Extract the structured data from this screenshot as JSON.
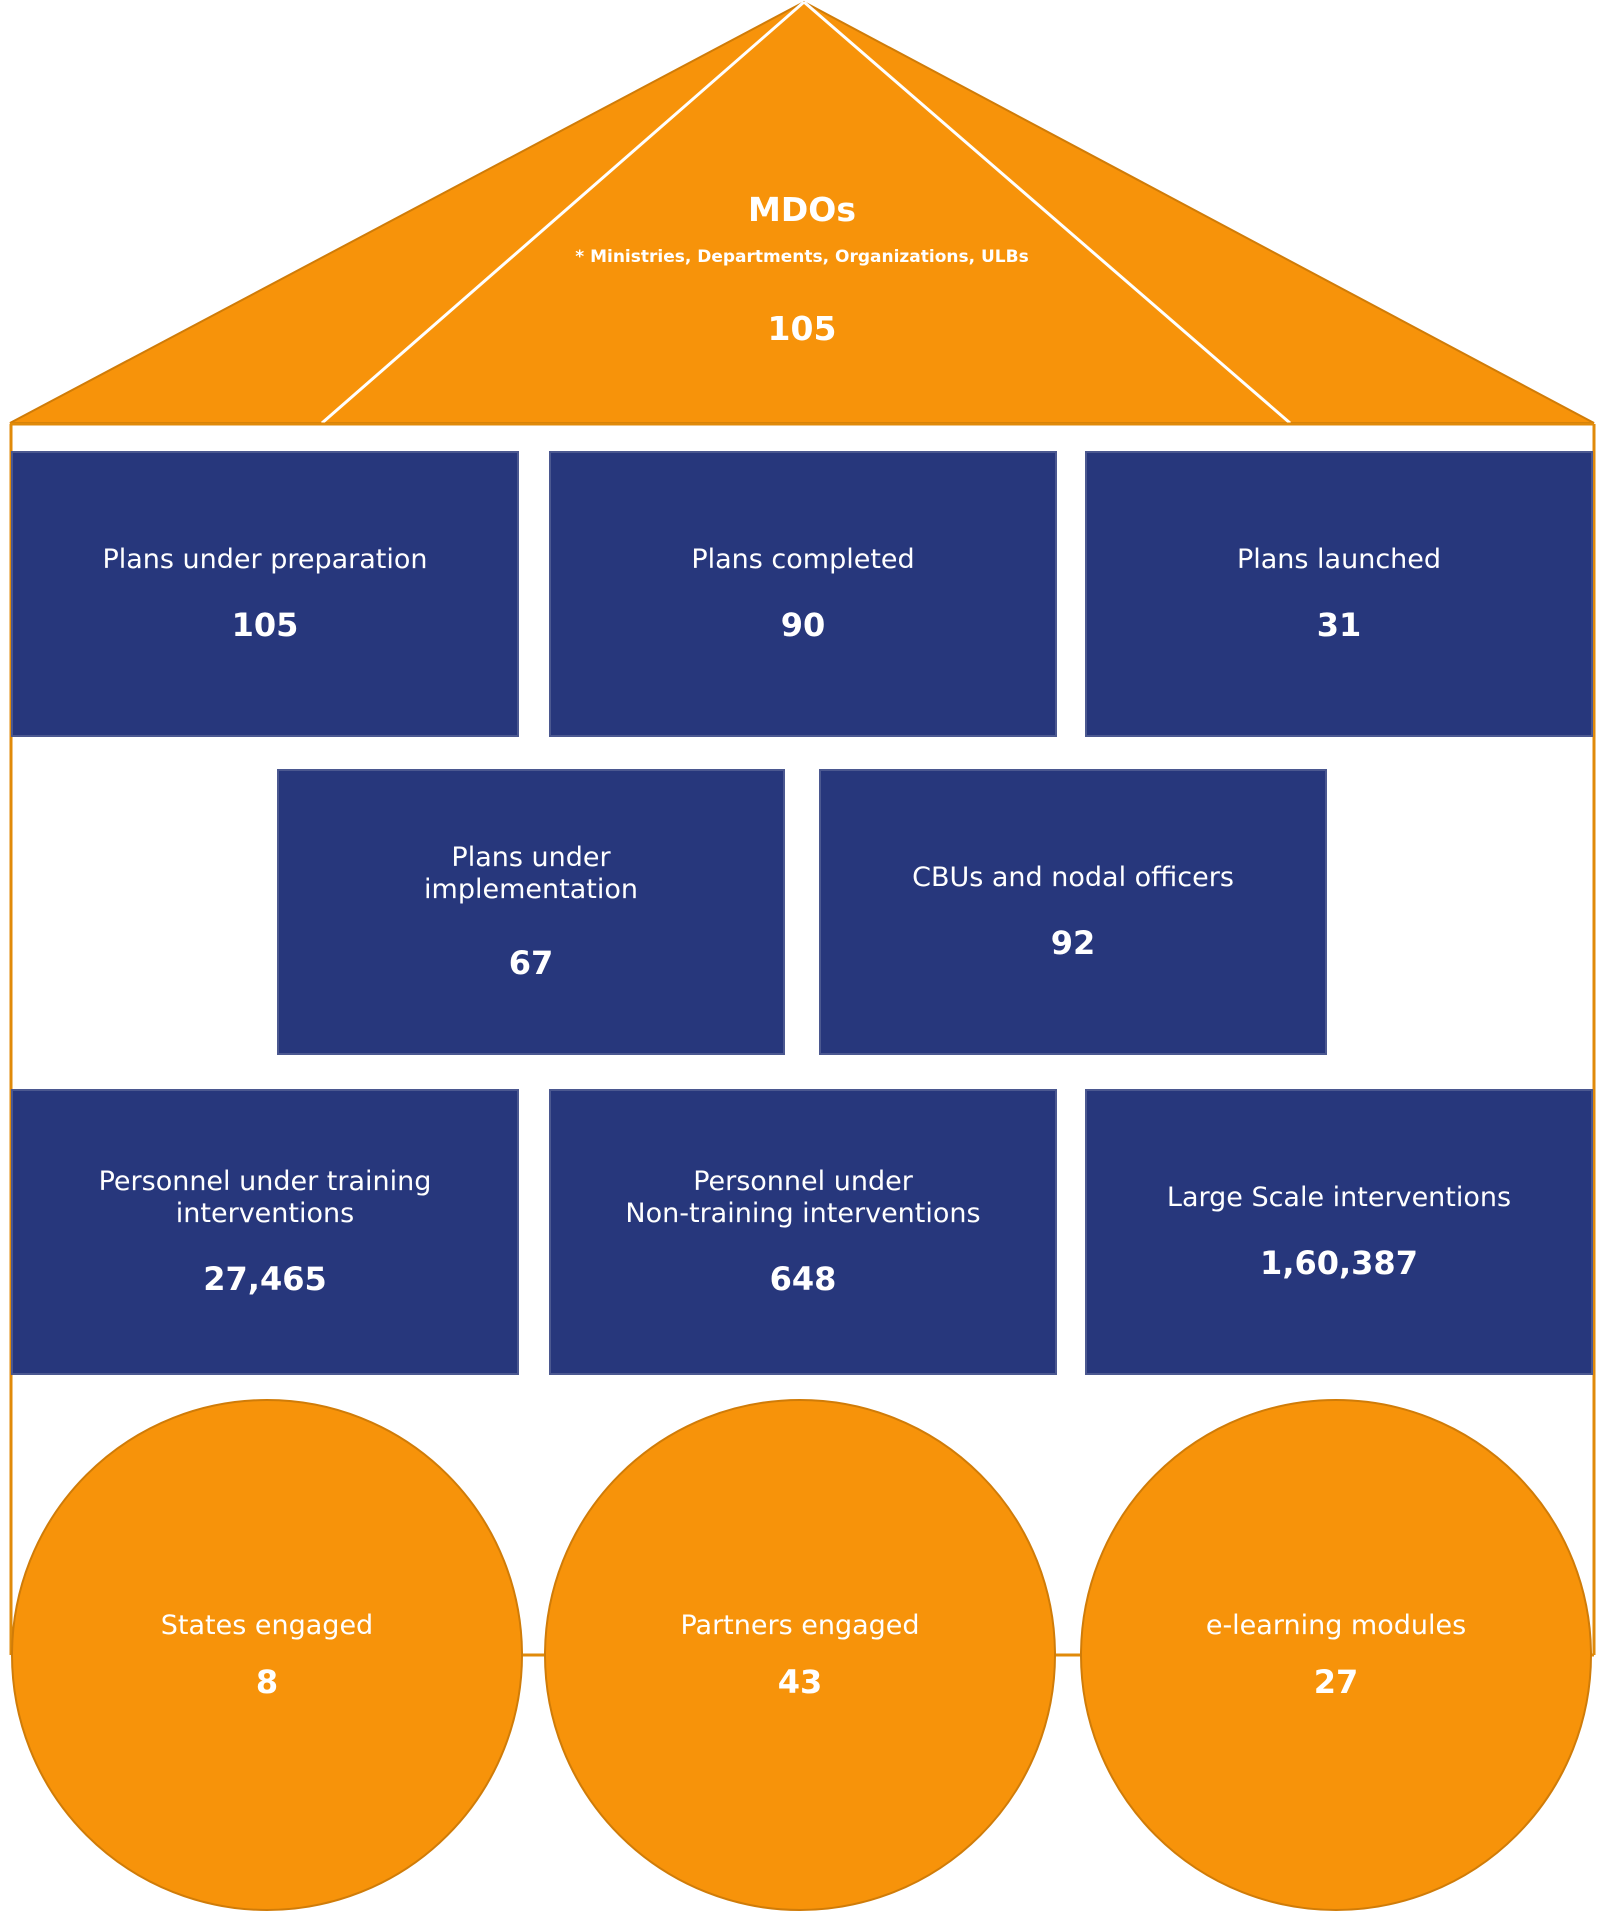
{
  "roof": {
    "title": "MDOs",
    "subtitle": "* Ministries, Departments, Organizations, ULBs",
    "value": "105"
  },
  "row1": [
    {
      "label": "Plans under preparation",
      "value": "105"
    },
    {
      "label": "Plans completed",
      "value": "90"
    },
    {
      "label": "Plans launched",
      "value": "31"
    }
  ],
  "row2": [
    {
      "label": "Plans under\nimplementation",
      "value": "67"
    },
    {
      "label": "CBUs and nodal officers",
      "value": "92"
    }
  ],
  "row3": [
    {
      "label": "Personnel under training\ninterventions",
      "value": "27,465"
    },
    {
      "label": "Personnel under\nNon-training interventions",
      "value": "648"
    },
    {
      "label": "Large Scale interventions",
      "value": "1,60,387"
    }
  ],
  "foundation": [
    {
      "label": "States engaged",
      "value": "8"
    },
    {
      "label": "Partners engaged",
      "value": "43"
    },
    {
      "label": "e-learning modules",
      "value": "27"
    }
  ],
  "colors": {
    "orange": "#f7930a",
    "navy": "#27377c"
  }
}
